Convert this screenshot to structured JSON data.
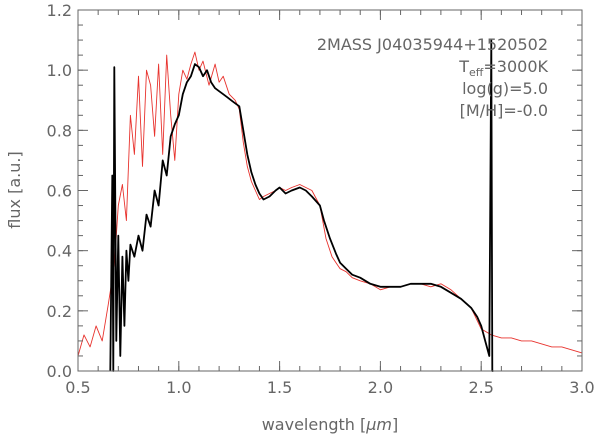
{
  "chart_data": {
    "type": "line",
    "xlabel_prefix": "wavelength [",
    "xlabel_unit": "μm",
    "xlabel_suffix": "]",
    "ylabel": "flux [a.u.]",
    "xlim": [
      0.5,
      3.0
    ],
    "ylim": [
      0.0,
      1.2
    ],
    "grid": false,
    "x_ticks": [
      "0.5",
      "1.0",
      "1.5",
      "2.0",
      "2.5",
      "3.0"
    ],
    "y_ticks": [
      "0.0",
      "0.2",
      "0.4",
      "0.6",
      "0.8",
      "1.0",
      "1.2"
    ],
    "annotations": {
      "object": "2MASS J04035944+1520502",
      "teff_prefix": "T",
      "teff_sub": "eff",
      "teff_value": "=3000K",
      "logg": "log(g)=5.0",
      "metallicity": "[M/H]=-0.0"
    },
    "series": [
      {
        "color": "#e8332e",
        "x": [
          0.5,
          0.53,
          0.56,
          0.59,
          0.62,
          0.65,
          0.68,
          0.7,
          0.72,
          0.74,
          0.76,
          0.78,
          0.8,
          0.82,
          0.84,
          0.86,
          0.88,
          0.9,
          0.92,
          0.94,
          0.96,
          0.98,
          1.0,
          1.02,
          1.04,
          1.06,
          1.08,
          1.1,
          1.12,
          1.15,
          1.18,
          1.2,
          1.22,
          1.25,
          1.28,
          1.3,
          1.32,
          1.34,
          1.36,
          1.38,
          1.4,
          1.42,
          1.45,
          1.48,
          1.5,
          1.53,
          1.56,
          1.6,
          1.63,
          1.66,
          1.7,
          1.73,
          1.76,
          1.78,
          1.8,
          1.83,
          1.86,
          1.9,
          1.95,
          2.0,
          2.05,
          2.1,
          2.15,
          2.2,
          2.25,
          2.3,
          2.35,
          2.4,
          2.45,
          2.5,
          2.55,
          2.6,
          2.65,
          2.7,
          2.75,
          2.8,
          2.85,
          2.9,
          2.95,
          3.0
        ],
        "y": [
          0.05,
          0.12,
          0.08,
          0.15,
          0.1,
          0.22,
          0.35,
          0.55,
          0.62,
          0.5,
          0.85,
          0.72,
          0.98,
          0.68,
          1.0,
          0.95,
          0.78,
          1.02,
          0.72,
          1.05,
          0.85,
          0.7,
          0.92,
          1.0,
          0.97,
          1.02,
          1.06,
          1.0,
          1.03,
          0.95,
          1.02,
          0.96,
          0.98,
          0.92,
          0.9,
          0.87,
          0.76,
          0.68,
          0.63,
          0.6,
          0.57,
          0.58,
          0.59,
          0.6,
          0.61,
          0.6,
          0.61,
          0.62,
          0.61,
          0.6,
          0.55,
          0.44,
          0.38,
          0.36,
          0.34,
          0.33,
          0.31,
          0.3,
          0.29,
          0.27,
          0.28,
          0.28,
          0.29,
          0.29,
          0.28,
          0.29,
          0.27,
          0.24,
          0.21,
          0.14,
          0.12,
          0.11,
          0.11,
          0.1,
          0.1,
          0.09,
          0.08,
          0.08,
          0.07,
          0.06
        ]
      },
      {
        "color": "#000000",
        "x": [
          0.66,
          0.67,
          0.675,
          0.68,
          0.69,
          0.7,
          0.71,
          0.72,
          0.73,
          0.74,
          0.75,
          0.76,
          0.77,
          0.78,
          0.8,
          0.82,
          0.84,
          0.86,
          0.88,
          0.9,
          0.92,
          0.94,
          0.96,
          0.98,
          1.0,
          1.02,
          1.04,
          1.06,
          1.08,
          1.1,
          1.12,
          1.14,
          1.16,
          1.18,
          1.2,
          1.22,
          1.24,
          1.26,
          1.28,
          1.3,
          1.32,
          1.34,
          1.36,
          1.38,
          1.4,
          1.42,
          1.45,
          1.48,
          1.5,
          1.53,
          1.56,
          1.6,
          1.63,
          1.66,
          1.7,
          1.72,
          1.75,
          1.78,
          1.8,
          1.83,
          1.86,
          1.9,
          1.95,
          2.0,
          2.05,
          2.1,
          2.15,
          2.2,
          2.25,
          2.3,
          2.35,
          2.4,
          2.45,
          2.48,
          2.5,
          2.52,
          2.54,
          2.55,
          2.555,
          2.56
        ],
        "y": [
          0.0,
          0.65,
          0.0,
          1.01,
          0.1,
          0.45,
          0.05,
          0.38,
          0.15,
          0.4,
          0.3,
          0.42,
          0.4,
          0.38,
          0.45,
          0.4,
          0.52,
          0.48,
          0.6,
          0.55,
          0.7,
          0.65,
          0.78,
          0.82,
          0.85,
          0.92,
          0.96,
          0.98,
          1.02,
          1.01,
          0.98,
          1.0,
          0.96,
          0.94,
          0.93,
          0.92,
          0.91,
          0.9,
          0.89,
          0.88,
          0.8,
          0.72,
          0.66,
          0.62,
          0.59,
          0.57,
          0.58,
          0.6,
          0.61,
          0.59,
          0.6,
          0.61,
          0.6,
          0.58,
          0.55,
          0.5,
          0.44,
          0.39,
          0.36,
          0.34,
          0.32,
          0.31,
          0.29,
          0.28,
          0.28,
          0.28,
          0.29,
          0.29,
          0.29,
          0.28,
          0.26,
          0.24,
          0.21,
          0.18,
          0.15,
          0.1,
          0.05,
          1.1,
          0.0,
          0.0
        ]
      }
    ]
  }
}
